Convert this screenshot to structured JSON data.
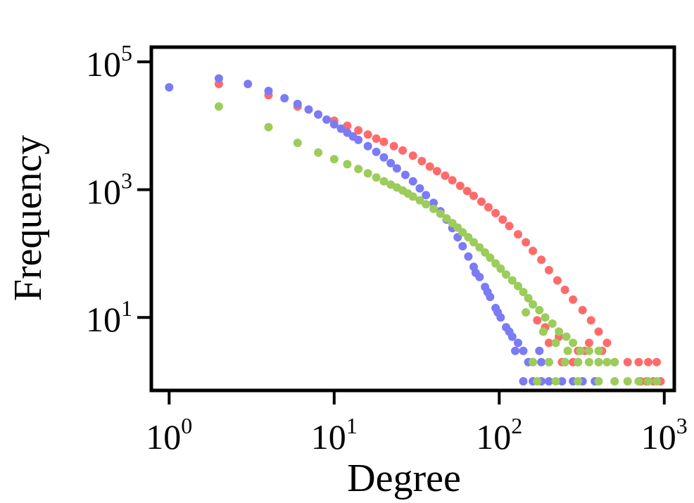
{
  "chart_data": {
    "type": "scatter",
    "title": "",
    "xlabel": "Degree",
    "ylabel": "Frequency",
    "xscale": "log",
    "yscale": "log",
    "xlim": [
      0.78,
      1150
    ],
    "ylim": [
      0.72,
      170000
    ],
    "grid": false,
    "legend": "none",
    "x_ticks": [
      {
        "value": 1,
        "base": "10",
        "exp": "0"
      },
      {
        "value": 10,
        "base": "10",
        "exp": "1"
      },
      {
        "value": 100,
        "base": "10",
        "exp": "2"
      },
      {
        "value": 1000,
        "base": "10",
        "exp": "3"
      }
    ],
    "y_ticks": [
      {
        "value": 10,
        "base": "10",
        "exp": "1"
      },
      {
        "value": 1000,
        "base": "10",
        "exp": "3"
      },
      {
        "value": 100000,
        "base": "10",
        "exp": "5"
      }
    ],
    "series": [
      {
        "color": "#ff6b6b",
        "points": [
          [
            2,
            45000
          ],
          [
            4,
            30000
          ],
          [
            6,
            20000
          ],
          [
            8,
            15000
          ],
          [
            10,
            12000
          ],
          [
            12,
            10000
          ],
          [
            14,
            8500
          ],
          [
            16,
            7300
          ],
          [
            18,
            6300
          ],
          [
            20,
            5600
          ],
          [
            23,
            4800
          ],
          [
            26,
            4100
          ],
          [
            30,
            3400
          ],
          [
            34,
            2800
          ],
          [
            38,
            2300
          ],
          [
            42,
            1950
          ],
          [
            47,
            1650
          ],
          [
            52,
            1400
          ],
          [
            58,
            1150
          ],
          [
            64,
            950
          ],
          [
            70,
            800
          ],
          [
            78,
            650
          ],
          [
            86,
            530
          ],
          [
            95,
            430
          ],
          [
            105,
            340
          ],
          [
            115,
            270
          ],
          [
            130,
            200
          ],
          [
            145,
            150
          ],
          [
            160,
            110
          ],
          [
            180,
            80
          ],
          [
            200,
            55
          ],
          [
            225,
            38
          ],
          [
            250,
            27
          ],
          [
            280,
            19
          ],
          [
            320,
            13
          ],
          [
            360,
            9
          ],
          [
            400,
            6
          ],
          [
            450,
            4
          ],
          [
            200,
            4
          ],
          [
            300,
            3
          ],
          [
            400,
            2
          ],
          [
            500,
            2
          ],
          [
            600,
            2
          ],
          [
            700,
            2
          ],
          [
            800,
            2
          ],
          [
            900,
            2
          ],
          [
            950,
            1
          ],
          [
            860,
            1
          ],
          [
            780,
            1
          ],
          [
            720,
            1
          ],
          [
            240,
            2
          ],
          [
            280,
            2
          ],
          [
            330,
            3
          ],
          [
            350,
            4
          ],
          [
            420,
            3
          ],
          [
            230,
            5
          ],
          [
            170,
            9
          ],
          [
            190,
            7
          ]
        ]
      },
      {
        "color": "#7b7bf5",
        "points": [
          [
            1,
            40000
          ],
          [
            2,
            55000
          ],
          [
            3,
            45000
          ],
          [
            4,
            35000
          ],
          [
            5,
            27000
          ],
          [
            6,
            22000
          ],
          [
            7,
            18000
          ],
          [
            8,
            15000
          ],
          [
            9,
            12500
          ],
          [
            10,
            10500
          ],
          [
            11,
            9000
          ],
          [
            12,
            7800
          ],
          [
            13,
            6800
          ],
          [
            14,
            6000
          ],
          [
            16,
            4800
          ],
          [
            18,
            3900
          ],
          [
            20,
            3200
          ],
          [
            22,
            2600
          ],
          [
            24,
            2150
          ],
          [
            27,
            1700
          ],
          [
            30,
            1350
          ],
          [
            33,
            1050
          ],
          [
            36,
            820
          ],
          [
            40,
            620
          ],
          [
            44,
            460
          ],
          [
            48,
            340
          ],
          [
            52,
            250
          ],
          [
            56,
            180
          ],
          [
            60,
            130
          ],
          [
            65,
            90
          ],
          [
            70,
            62
          ],
          [
            76,
            43
          ],
          [
            82,
            30
          ],
          [
            88,
            21
          ],
          [
            95,
            14
          ],
          [
            102,
            10
          ],
          [
            110,
            7
          ],
          [
            120,
            5
          ],
          [
            130,
            4
          ],
          [
            140,
            3
          ],
          [
            150,
            2
          ],
          [
            160,
            2
          ],
          [
            180,
            2
          ],
          [
            200,
            2
          ],
          [
            250,
            2
          ],
          [
            300,
            2
          ],
          [
            140,
            1
          ],
          [
            160,
            1
          ],
          [
            180,
            1
          ],
          [
            200,
            1
          ],
          [
            240,
            1
          ],
          [
            280,
            1
          ],
          [
            320,
            1
          ],
          [
            380,
            1
          ],
          [
            72,
            50
          ],
          [
            85,
            25
          ],
          [
            98,
            12
          ],
          [
            115,
            6
          ],
          [
            125,
            3
          ],
          [
            175,
            3
          ]
        ]
      },
      {
        "color": "#9ccc5a",
        "points": [
          [
            2,
            20000
          ],
          [
            4,
            9500
          ],
          [
            6,
            5400
          ],
          [
            8,
            3800
          ],
          [
            10,
            3000
          ],
          [
            12,
            2500
          ],
          [
            14,
            2100
          ],
          [
            16,
            1800
          ],
          [
            18,
            1550
          ],
          [
            20,
            1350
          ],
          [
            22,
            1200
          ],
          [
            24,
            1080
          ],
          [
            26,
            970
          ],
          [
            28,
            870
          ],
          [
            30,
            780
          ],
          [
            33,
            680
          ],
          [
            36,
            590
          ],
          [
            40,
            500
          ],
          [
            44,
            420
          ],
          [
            48,
            355
          ],
          [
            52,
            300
          ],
          [
            56,
            255
          ],
          [
            60,
            215
          ],
          [
            65,
            180
          ],
          [
            70,
            150
          ],
          [
            76,
            125
          ],
          [
            82,
            104
          ],
          [
            88,
            86
          ],
          [
            95,
            70
          ],
          [
            102,
            58
          ],
          [
            110,
            47
          ],
          [
            120,
            38
          ],
          [
            130,
            31
          ],
          [
            140,
            25
          ],
          [
            150,
            20
          ],
          [
            160,
            16
          ],
          [
            175,
            13
          ],
          [
            190,
            10
          ],
          [
            210,
            8
          ],
          [
            230,
            6
          ],
          [
            255,
            5
          ],
          [
            280,
            4
          ],
          [
            310,
            3
          ],
          [
            350,
            3
          ],
          [
            400,
            3
          ],
          [
            160,
            2
          ],
          [
            200,
            2
          ],
          [
            250,
            2
          ],
          [
            300,
            2
          ],
          [
            350,
            2
          ],
          [
            400,
            2
          ],
          [
            450,
            2
          ],
          [
            500,
            2
          ],
          [
            170,
            1
          ],
          [
            220,
            1
          ],
          [
            300,
            1
          ],
          [
            400,
            1
          ],
          [
            500,
            1
          ],
          [
            600,
            1
          ],
          [
            700,
            1
          ],
          [
            800,
            1
          ],
          [
            900,
            1
          ],
          [
            145,
            12
          ],
          [
            185,
            6
          ],
          [
            220,
            4
          ],
          [
            260,
            3
          ]
        ]
      }
    ]
  }
}
